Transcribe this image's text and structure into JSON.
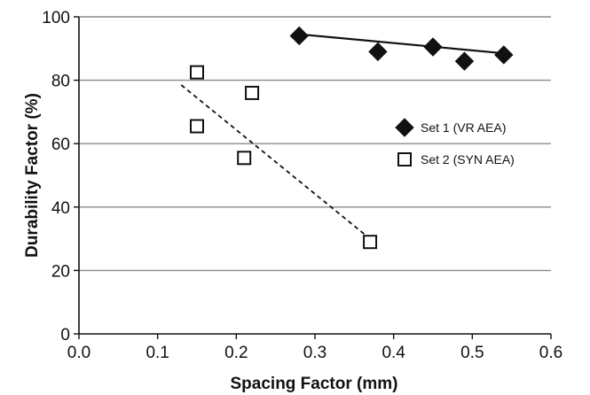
{
  "chart_data": {
    "type": "scatter",
    "title": "",
    "xlabel": "Spacing Factor (mm)",
    "ylabel": "Durability Factor (%)",
    "xlim": [
      0.0,
      0.6
    ],
    "ylim": [
      0,
      100
    ],
    "xticks": [
      "0.0",
      "0.1",
      "0.2",
      "0.3",
      "0.4",
      "0.5",
      "0.6"
    ],
    "yticks": [
      "0",
      "20",
      "40",
      "60",
      "80",
      "100"
    ],
    "grid": "horizontal",
    "legend_position": "right",
    "series": [
      {
        "name": "Set 1 (VR AEA)",
        "marker": "filled-diamond",
        "color": "#111111",
        "trendline": "solid",
        "trendline_x": [
          0.28,
          0.54
        ],
        "trendline_y": [
          94.5,
          88.5
        ],
        "points": [
          {
            "x": 0.28,
            "y": 94
          },
          {
            "x": 0.38,
            "y": 89
          },
          {
            "x": 0.45,
            "y": 90.5
          },
          {
            "x": 0.49,
            "y": 86
          },
          {
            "x": 0.54,
            "y": 88
          }
        ]
      },
      {
        "name": "Set 2 (SYN AEA)",
        "marker": "open-square",
        "color": "#111111",
        "trendline": "dashed",
        "trendline_x": [
          0.13,
          0.37
        ],
        "trendline_y": [
          78.5,
          30
        ],
        "points": [
          {
            "x": 0.15,
            "y": 82.5
          },
          {
            "x": 0.15,
            "y": 65.5
          },
          {
            "x": 0.22,
            "y": 76
          },
          {
            "x": 0.21,
            "y": 55.5
          },
          {
            "x": 0.37,
            "y": 29
          }
        ]
      }
    ]
  }
}
